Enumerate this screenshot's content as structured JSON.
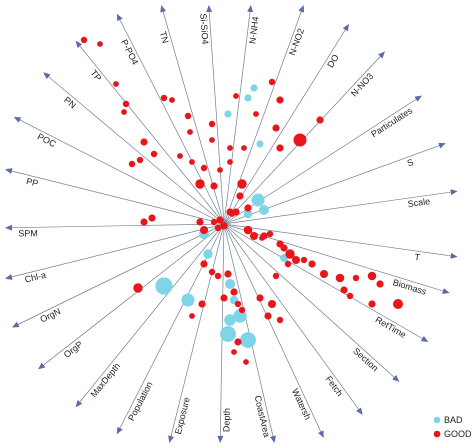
{
  "colors": {
    "axis": "#5b6aa8",
    "good": "#e8151b",
    "bad": "#7fd5e8"
  },
  "chart_data": {
    "type": "biplot",
    "axes": [
      {
        "label": "T",
        "angle_deg": -8
      },
      {
        "label": "Scale",
        "angle_deg": 8
      },
      {
        "label": "S",
        "angle_deg": 20
      },
      {
        "label": "Particulates",
        "angle_deg": 33
      },
      {
        "label": "N-NO3",
        "angle_deg": 47
      },
      {
        "label": "DO",
        "angle_deg": 58
      },
      {
        "label": "N-NO2",
        "angle_deg": 70
      },
      {
        "label": "N-NH4",
        "angle_deg": 83
      },
      {
        "label": "Si-SiO4",
        "angle_deg": 94
      },
      {
        "label": "TN",
        "angle_deg": 106
      },
      {
        "label": "P-PO4",
        "angle_deg": 117
      },
      {
        "label": "TP",
        "angle_deg": 129
      },
      {
        "label": "PN",
        "angle_deg": 140
      },
      {
        "label": "POC",
        "angle_deg": 153
      },
      {
        "label": "PP",
        "angle_deg": 166
      },
      {
        "label": "SPM",
        "angle_deg": 181
      },
      {
        "label": "Chl-a",
        "angle_deg": 194
      },
      {
        "label": "OrgN",
        "angle_deg": 206
      },
      {
        "label": "OrgP",
        "angle_deg": 218
      },
      {
        "label": "MaxDepth",
        "angle_deg": 231
      },
      {
        "label": "Population",
        "angle_deg": 243
      },
      {
        "label": "Exposure",
        "angle_deg": 256
      },
      {
        "label": "Depth",
        "angle_deg": 269
      },
      {
        "label": "CoastArea",
        "angle_deg": 283
      },
      {
        "label": "Watersh",
        "angle_deg": 295
      },
      {
        "label": "Fetch",
        "angle_deg": 306
      },
      {
        "label": "Section",
        "angle_deg": 318
      },
      {
        "label": "RetTime",
        "angle_deg": 330
      },
      {
        "label": "Biomass",
        "angle_deg": 343
      }
    ],
    "legend": {
      "placement": "bottom-right",
      "entries": [
        {
          "label": "BAD",
          "series": "bad"
        },
        {
          "label": "GOOD",
          "series": "good"
        }
      ]
    },
    "series": [
      {
        "name": "bad",
        "points": [
          [
            0.15,
            0.68,
            1.0
          ],
          [
            0.12,
            0.63,
            1.0
          ],
          [
            0.02,
            0.55,
            1.0
          ],
          [
            0.18,
            0.4,
            1.0
          ],
          [
            0.17,
            0.12,
            1.8
          ],
          [
            0.2,
            0.07,
            1.4
          ],
          [
            0.12,
            0.05,
            1.2
          ],
          [
            -0.1,
            -0.05,
            1.4
          ],
          [
            -0.08,
            -0.15,
            1.3
          ],
          [
            -0.3,
            -0.31,
            2.4
          ],
          [
            -0.18,
            -0.38,
            1.8
          ],
          [
            0.02,
            -0.55,
            2.2
          ],
          [
            0.03,
            -0.48,
            1.6
          ],
          [
            0.08,
            -0.46,
            1.9
          ],
          [
            0.12,
            -0.58,
            2.2
          ],
          [
            0.03,
            -0.3,
            1.4
          ],
          [
            0.05,
            -0.38,
            1.2
          ],
          [
            0.3,
            -0.17,
            1.1
          ]
        ]
      },
      {
        "name": "good",
        "points": [
          [
            -0.7,
            0.92,
            0.9
          ],
          [
            -0.62,
            0.9,
            0.8
          ],
          [
            -0.54,
            0.7,
            0.8
          ],
          [
            -0.49,
            0.6,
            0.9
          ],
          [
            -0.5,
            0.56,
            0.8
          ],
          [
            -0.3,
            0.63,
            0.9
          ],
          [
            -0.26,
            0.62,
            0.8
          ],
          [
            -0.18,
            0.54,
            0.9
          ],
          [
            -0.17,
            0.46,
            0.8
          ],
          [
            -0.06,
            0.5,
            0.9
          ],
          [
            -0.06,
            0.42,
            0.8
          ],
          [
            0.03,
            0.38,
            0.8
          ],
          [
            0.1,
            0.38,
            0.8
          ],
          [
            0.16,
            0.55,
            0.8
          ],
          [
            0.06,
            0.64,
            0.8
          ],
          [
            0.03,
            0.31,
            0.8
          ],
          [
            0.26,
            0.48,
            1.0
          ],
          [
            0.28,
            0.62,
            1.0
          ],
          [
            0.24,
            0.71,
            0.9
          ],
          [
            0.28,
            0.38,
            1.0
          ],
          [
            0.38,
            0.42,
            1.8
          ],
          [
            0.48,
            0.52,
            1.0
          ],
          [
            -0.4,
            0.41,
            1.0
          ],
          [
            -0.35,
            0.35,
            0.9
          ],
          [
            -0.22,
            0.34,
            0.8
          ],
          [
            -0.16,
            0.31,
            0.8
          ],
          [
            -0.42,
            0.32,
            0.9
          ],
          [
            -0.46,
            0.3,
            0.9
          ],
          [
            -0.1,
            0.28,
            0.9
          ],
          [
            -0.02,
            0.27,
            0.8
          ],
          [
            -0.12,
            0.2,
            1.3
          ],
          [
            -0.05,
            0.19,
            1.0
          ],
          [
            0.09,
            0.2,
            1.3
          ],
          [
            0.08,
            0.14,
            1.0
          ],
          [
            0.06,
            0.06,
            1.0
          ],
          [
            0.04,
            0.05,
            0.8
          ],
          [
            0.12,
            0.08,
            1.0
          ],
          [
            0.03,
            0.06,
            1.0
          ],
          [
            -0.02,
            0.02,
            1.0
          ],
          [
            -0.05,
            0.01,
            0.9
          ],
          [
            0.0,
            -0.01,
            1.0
          ],
          [
            -0.03,
            -0.02,
            0.9
          ],
          [
            -0.4,
            0.01,
            1.0
          ],
          [
            -0.36,
            0.03,
            1.0
          ],
          [
            -0.12,
            0.01,
            1.0
          ],
          [
            -0.1,
            -0.03,
            1.1
          ],
          [
            0.12,
            -0.03,
            1.2
          ],
          [
            0.15,
            -0.06,
            1.1
          ],
          [
            0.2,
            -0.06,
            1.0
          ],
          [
            0.23,
            -0.05,
            0.9
          ],
          [
            0.19,
            -0.07,
            0.8
          ],
          [
            0.28,
            -0.1,
            1.0
          ],
          [
            0.3,
            -0.12,
            1.0
          ],
          [
            0.33,
            -0.15,
            1.3
          ],
          [
            0.36,
            -0.18,
            1.1
          ],
          [
            0.4,
            -0.18,
            0.9
          ],
          [
            0.44,
            -0.2,
            1.0
          ],
          [
            0.5,
            -0.25,
            1.1
          ],
          [
            0.58,
            -0.27,
            1.2
          ],
          [
            0.66,
            -0.27,
            0.9
          ],
          [
            0.74,
            -0.26,
            1.2
          ],
          [
            0.78,
            -0.3,
            1.0
          ],
          [
            0.6,
            -0.33,
            1.0
          ],
          [
            0.63,
            -0.36,
            0.9
          ],
          [
            0.87,
            -0.4,
            1.4
          ],
          [
            0.74,
            -0.4,
            1.0
          ],
          [
            -0.43,
            -0.32,
            1.3
          ],
          [
            -0.1,
            -0.2,
            1.0
          ],
          [
            -0.06,
            -0.24,
            0.9
          ],
          [
            0.02,
            -0.25,
            1.0
          ],
          [
            -0.03,
            -0.26,
            0.9
          ],
          [
            0.0,
            -0.37,
            1.0
          ],
          [
            0.05,
            -0.34,
            1.0
          ],
          [
            0.07,
            -0.4,
            0.9
          ],
          [
            0.09,
            -0.43,
            0.9
          ],
          [
            0.18,
            -0.37,
            1.0
          ],
          [
            0.24,
            -0.4,
            1.1
          ],
          [
            0.22,
            -0.46,
            1.0
          ],
          [
            0.28,
            -0.48,
            0.9
          ],
          [
            0.07,
            -0.59,
            1.0
          ],
          [
            0.05,
            -0.64,
            0.8
          ],
          [
            -0.11,
            -0.4,
            1.0
          ],
          [
            -0.16,
            -0.46,
            0.8
          ],
          [
            0.11,
            -0.69,
            0.8
          ],
          [
            0.32,
            -0.2,
            0.9
          ],
          [
            0.26,
            -0.26,
            0.9
          ]
        ]
      }
    ]
  },
  "legend_labels": {
    "bad": "BAD",
    "good": "GOOD"
  }
}
